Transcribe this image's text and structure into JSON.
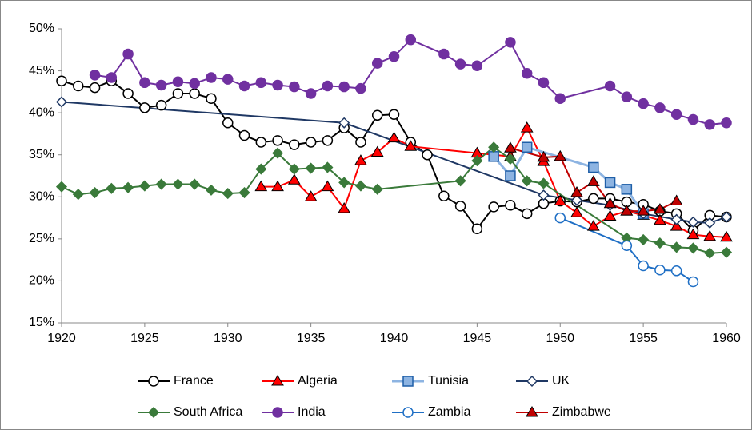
{
  "chart_data": {
    "type": "line",
    "xlim": [
      1920,
      1960
    ],
    "xticks": [
      1920,
      1925,
      1930,
      1935,
      1940,
      1945,
      1950,
      1955,
      1960
    ],
    "ylim": [
      15,
      50
    ],
    "yticks": [
      {
        "value": 15,
        "label": "15%"
      },
      {
        "value": 20,
        "label": "20%"
      },
      {
        "value": 25,
        "label": "25%"
      },
      {
        "value": 30,
        "label": "30%"
      },
      {
        "value": 35,
        "label": "35%"
      },
      {
        "value": 40,
        "label": "40%"
      },
      {
        "value": 45,
        "label": "45%"
      },
      {
        "value": 50,
        "label": "50%"
      }
    ],
    "grid": false,
    "series": [
      {
        "name": "France",
        "color": "#000000",
        "marker": "circle",
        "marker_fill": "#ffffff",
        "x": [
          1920,
          1921,
          1922,
          1923,
          1924,
          1925,
          1926,
          1927,
          1928,
          1929,
          1930,
          1931,
          1932,
          1933,
          1934,
          1935,
          1936,
          1937,
          1938,
          1939,
          1940,
          1941,
          1942,
          1943,
          1944,
          1945,
          1946,
          1947,
          1948,
          1949,
          1950,
          1951,
          1952,
          1953,
          1954,
          1955,
          1956,
          1957,
          1958,
          1959,
          1960
        ],
        "values": [
          43.8,
          43.2,
          43.0,
          43.8,
          42.3,
          40.6,
          40.9,
          42.3,
          42.3,
          41.7,
          38.8,
          37.3,
          36.5,
          36.7,
          36.2,
          36.5,
          36.7,
          38.2,
          36.5,
          39.7,
          39.8,
          36.5,
          35.0,
          30.1,
          28.9,
          26.2,
          28.8,
          29.0,
          28.0,
          29.2,
          29.5,
          29.4,
          29.8,
          29.8,
          29.4,
          29.1,
          28.3,
          28.0,
          26.0,
          27.8,
          27.6
        ]
      },
      {
        "name": "Algeria",
        "color": "#ff0000",
        "marker": "triangle",
        "marker_fill": "#ff0000",
        "x": [
          1932,
          1933,
          1934,
          1935,
          1936,
          1937,
          1938,
          1939,
          1940,
          1941,
          1945,
          1947,
          1948,
          1949,
          1950,
          1951,
          1952,
          1953,
          1954,
          1955,
          1956,
          1957,
          1958,
          1959,
          1960
        ],
        "values": [
          31.2,
          31.2,
          32.0,
          30.0,
          31.2,
          28.6,
          34.3,
          35.3,
          37.0,
          36.0,
          35.2,
          34.8,
          38.2,
          34.2,
          29.5,
          28.1,
          26.5,
          27.7,
          28.3,
          27.8,
          27.2,
          26.5,
          25.5,
          25.3,
          25.2
        ]
      },
      {
        "name": "Tunisia",
        "color": "#8db4e2",
        "marker": "square",
        "marker_fill": "#8db4e2",
        "x": [
          1946,
          1947,
          1948,
          1952,
          1953,
          1954,
          1955
        ],
        "values": [
          34.8,
          32.5,
          35.9,
          33.5,
          31.7,
          30.9,
          28.0
        ]
      },
      {
        "name": "UK",
        "color": "#1f3864",
        "marker": "diamond",
        "marker_fill": "#ffffff",
        "x": [
          1920,
          1937,
          1949,
          1951,
          1953,
          1955,
          1957,
          1958,
          1959,
          1960
        ],
        "values": [
          41.3,
          38.8,
          30.2,
          29.6,
          29.0,
          28.0,
          27.3,
          27.0,
          26.9,
          27.6
        ]
      },
      {
        "name": "South Africa",
        "color": "#3a7a3a",
        "marker": "diamond",
        "marker_fill": "#3a7a3a",
        "x": [
          1920,
          1921,
          1922,
          1923,
          1924,
          1925,
          1926,
          1927,
          1928,
          1929,
          1930,
          1931,
          1932,
          1933,
          1934,
          1935,
          1936,
          1937,
          1938,
          1939,
          1944,
          1945,
          1946,
          1947,
          1948,
          1949,
          1954,
          1955,
          1956,
          1957,
          1958,
          1959,
          1960
        ],
        "values": [
          31.2,
          30.3,
          30.5,
          31.0,
          31.1,
          31.3,
          31.5,
          31.5,
          31.5,
          30.8,
          30.4,
          30.5,
          33.3,
          35.2,
          33.3,
          33.4,
          33.5,
          31.7,
          31.3,
          30.9,
          31.9,
          34.3,
          35.9,
          34.5,
          31.9,
          31.6,
          25.1,
          24.9,
          24.5,
          24.0,
          23.9,
          23.3,
          23.4
        ]
      },
      {
        "name": "India",
        "color": "#7030a0",
        "marker": "circle",
        "marker_fill": "#7030a0",
        "x": [
          1922,
          1923,
          1924,
          1925,
          1926,
          1927,
          1928,
          1929,
          1930,
          1931,
          1932,
          1933,
          1934,
          1935,
          1936,
          1937,
          1938,
          1939,
          1940,
          1941,
          1943,
          1944,
          1945,
          1947,
          1948,
          1949,
          1950,
          1953,
          1954,
          1955,
          1956,
          1957,
          1958,
          1959,
          1960
        ],
        "values": [
          44.5,
          44.2,
          47.0,
          43.6,
          43.3,
          43.7,
          43.5,
          44.2,
          44.0,
          43.2,
          43.6,
          43.3,
          43.1,
          42.3,
          43.2,
          43.1,
          42.9,
          45.9,
          46.7,
          48.7,
          47.0,
          45.8,
          45.6,
          48.4,
          44.7,
          43.6,
          41.7,
          43.2,
          41.9,
          41.1,
          40.6,
          39.8,
          39.2,
          38.6,
          38.8
        ]
      },
      {
        "name": "Zambia",
        "color": "#1f6fc5",
        "marker": "circle",
        "marker_fill": "#ffffff",
        "x": [
          1950,
          1954,
          1955,
          1956,
          1957,
          1958
        ],
        "values": [
          27.5,
          24.2,
          21.8,
          21.3,
          21.2,
          19.9
        ]
      },
      {
        "name": "Zimbabwe",
        "color": "#c00000",
        "marker": "triangle",
        "marker_fill": "#c00000",
        "x": [
          1947,
          1949,
          1950,
          1951,
          1952,
          1953,
          1954,
          1955,
          1956,
          1957
        ],
        "values": [
          35.8,
          34.7,
          34.8,
          30.5,
          31.8,
          29.2,
          28.3,
          28.3,
          28.5,
          29.5
        ]
      }
    ]
  }
}
